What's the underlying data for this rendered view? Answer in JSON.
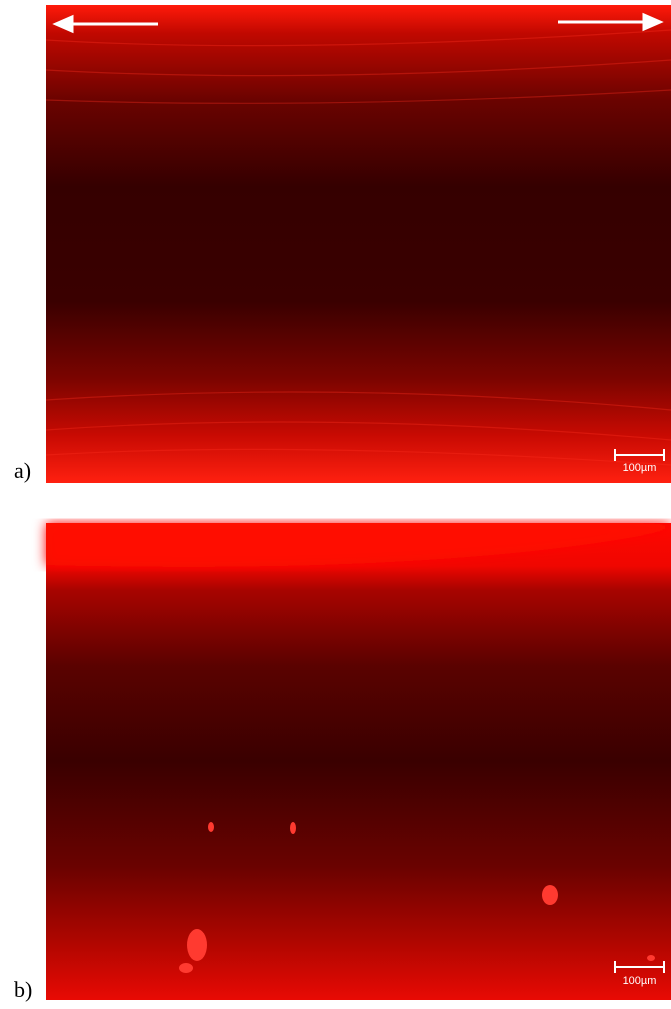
{
  "panels": [
    {
      "label": "a)",
      "scale_bar": "100µm"
    },
    {
      "label": "b)",
      "scale_bar": "100µm"
    }
  ]
}
